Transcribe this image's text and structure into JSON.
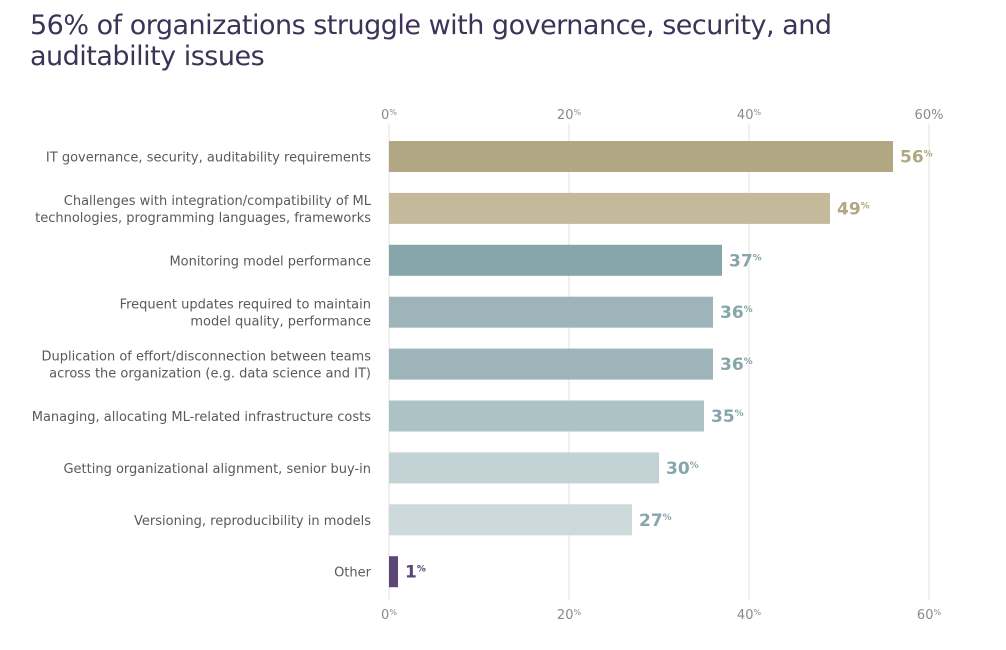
{
  "title": "56% of organizations struggle with governance, security, and auditability issues",
  "chart_data": {
    "type": "bar",
    "orientation": "horizontal",
    "xlim": [
      0,
      60
    ],
    "x_ticks": [
      0,
      20,
      40,
      60
    ],
    "top_tick_labels": [
      {
        "num": "0",
        "suffix": "%"
      },
      {
        "num": "20",
        "suffix": "%"
      },
      {
        "num": "40",
        "suffix": "%"
      },
      {
        "num": "60%",
        "suffix": ""
      }
    ],
    "bottom_tick_labels": [
      {
        "num": "0",
        "suffix": "%"
      },
      {
        "num": "20",
        "suffix": "%"
      },
      {
        "num": "40",
        "suffix": "%"
      },
      {
        "num": "60",
        "suffix": "%"
      }
    ],
    "grid": true,
    "categories": [
      [
        "IT governance, security, auditability requirements"
      ],
      [
        "Challenges with integration/compatibility of ML",
        "technologies, programming languages, frameworks"
      ],
      [
        "Monitoring model performance"
      ],
      [
        "Frequent updates required to maintain",
        "model quality, performance"
      ],
      [
        "Duplication of effort/disconnection between teams",
        "across the organization (e.g. data science and IT)"
      ],
      [
        "Managing, allocating ML-related infrastructure costs"
      ],
      [
        "Getting organizational alignment, senior buy-in"
      ],
      [
        "Versioning, reproducibility in models"
      ],
      [
        "Other"
      ]
    ],
    "values": [
      56,
      49,
      37,
      36,
      36,
      35,
      30,
      27,
      1
    ],
    "value_suffix": "%",
    "bar_colors": [
      "#b2a783",
      "#c4b99b",
      "#87a6ab",
      "#9db5b9",
      "#9db5b9",
      "#adc2c5",
      "#c3d3d5",
      "#cddadb",
      "#5b4674"
    ],
    "label_colors": [
      "#b2a783",
      "#b2a783",
      "#87a6ab",
      "#87a6ab",
      "#87a6ab",
      "#87a6ab",
      "#87a6ab",
      "#87a6ab",
      "#5b4674"
    ],
    "gridline_color": "#e2e2e2",
    "axis_label_color": "#8a8a8a"
  }
}
